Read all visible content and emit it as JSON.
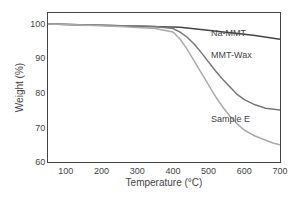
{
  "chart_data": {
    "type": "line",
    "xlabel": "Temperature (°C)",
    "ylabel": "Weight (%)",
    "xlim": [
      50,
      700
    ],
    "ylim": [
      60,
      103
    ],
    "xticks": [
      100,
      200,
      300,
      400,
      500,
      600,
      700
    ],
    "yticks": [
      60,
      70,
      80,
      90,
      100
    ],
    "grid": false,
    "series": [
      {
        "color": "#444444",
        "x": [
          50,
          100,
          150,
          200,
          250,
          300,
          350,
          400,
          420,
          440,
          460,
          480,
          500,
          530,
          550,
          580,
          600,
          630,
          650,
          680,
          700
        ],
        "values": [
          99.8,
          99.7,
          99.6,
          99.5,
          99.4,
          99.3,
          99.2,
          99.0,
          98.9,
          98.7,
          98.5,
          98.3,
          98.1,
          97.8,
          97.6,
          97.2,
          96.9,
          96.5,
          96.2,
          95.7,
          95.4
        ]
      },
      {
        "color": "#777777",
        "x": [
          50,
          100,
          150,
          200,
          250,
          300,
          350,
          400,
          420,
          440,
          460,
          480,
          500,
          520,
          540,
          560,
          580,
          600,
          630,
          660,
          680,
          700
        ],
        "values": [
          99.8,
          99.7,
          99.6,
          99.5,
          99.4,
          99.3,
          99.1,
          98.5,
          97.5,
          96.0,
          94.0,
          91.5,
          88.8,
          86.2,
          83.8,
          81.5,
          79.5,
          78.0,
          76.5,
          75.5,
          75.2,
          75.0
        ]
      },
      {
        "color": "#aaaaaa",
        "x": [
          50,
          100,
          150,
          200,
          250,
          300,
          350,
          400,
          420,
          440,
          460,
          480,
          500,
          520,
          540,
          560,
          580,
          600,
          630,
          660,
          680,
          700
        ],
        "values": [
          99.8,
          99.7,
          99.5,
          99.3,
          99.1,
          98.9,
          98.5,
          97.5,
          95.5,
          92.5,
          89.0,
          85.5,
          82.0,
          78.8,
          75.8,
          73.2,
          71.0,
          69.2,
          67.5,
          66.2,
          65.5,
          65.0
        ]
      }
    ],
    "annotations": [
      {
        "text": "Na-MMT",
        "x": 502,
        "y": 97.2
      },
      {
        "text": "MMT-Wax",
        "x": 502,
        "y": 91.0
      },
      {
        "text": "Sample E",
        "x": 502,
        "y": 72.5
      }
    ]
  }
}
